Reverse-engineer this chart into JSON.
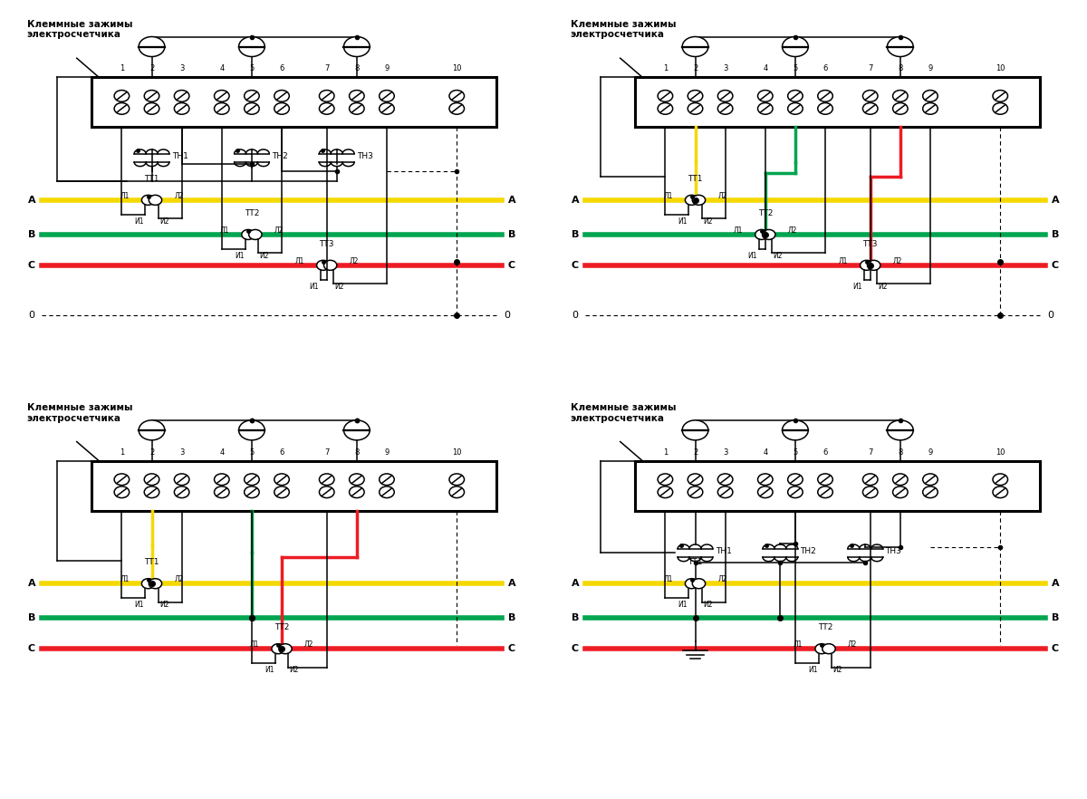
{
  "bg_color": "#ffffff",
  "panel_title": "Клеммные зажимы\nэлектросчетчика",
  "phase_labels": [
    "A",
    "B",
    "C"
  ],
  "phase_colors": [
    "#f5d800",
    "#00a550",
    "#ed1c24"
  ],
  "zero_label": "0",
  "term_numbers": [
    "1",
    "2",
    "3",
    "4",
    "5",
    "6",
    "7",
    "8",
    "9",
    "10"
  ],
  "tt_label_prefix": "ТТ",
  "tn_labels": [
    "ТН1",
    "ТН2",
    "ТН3"
  ],
  "l1_label": "Л1",
  "l2_label": "Л2",
  "i1_label": "И1",
  "i2_label": "И2"
}
